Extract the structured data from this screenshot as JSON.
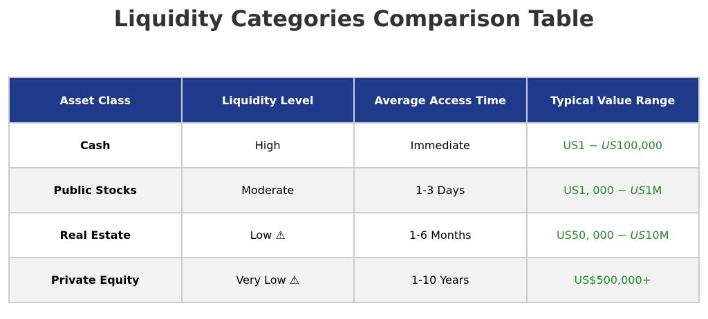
{
  "title": "Liquidity Categories Comparison Table",
  "colors": {
    "header_bg": "#1f3a8a",
    "header_text": "#ffffff",
    "row_odd_bg": "#ffffff",
    "row_even_bg": "#f2f2f2",
    "grid": "#cccccc",
    "value_text": "#228b22",
    "title_text": "#333333"
  },
  "chart_data": {
    "type": "table",
    "title": "Liquidity Categories Comparison Table",
    "columns": [
      "Asset Class",
      "Liquidity Level",
      "Average Access Time",
      "Typical Value Range"
    ],
    "rows": [
      {
        "asset_class": "Cash",
        "liquidity_level": "High",
        "access_time": "Immediate",
        "value_range": {
          "prefix": "US1 − ",
          "italic": "US",
          "suffix": "100,000"
        }
      },
      {
        "asset_class": "Public Stocks",
        "liquidity_level": "Moderate",
        "access_time": "1-3 Days",
        "value_range": {
          "prefix": "US1, 000 − ",
          "italic": "US",
          "suffix": "1M"
        }
      },
      {
        "asset_class": "Real Estate",
        "liquidity_level": "Low ⚠",
        "access_time": "1-6 Months",
        "value_range": {
          "prefix": "US50, 000 − ",
          "italic": "US",
          "suffix": "10M"
        }
      },
      {
        "asset_class": "Private Equity",
        "liquidity_level": "Very Low ⚠",
        "access_time": "1-10 Years",
        "value_range": {
          "prefix": "US$500,000+",
          "italic": "",
          "suffix": ""
        }
      }
    ]
  }
}
